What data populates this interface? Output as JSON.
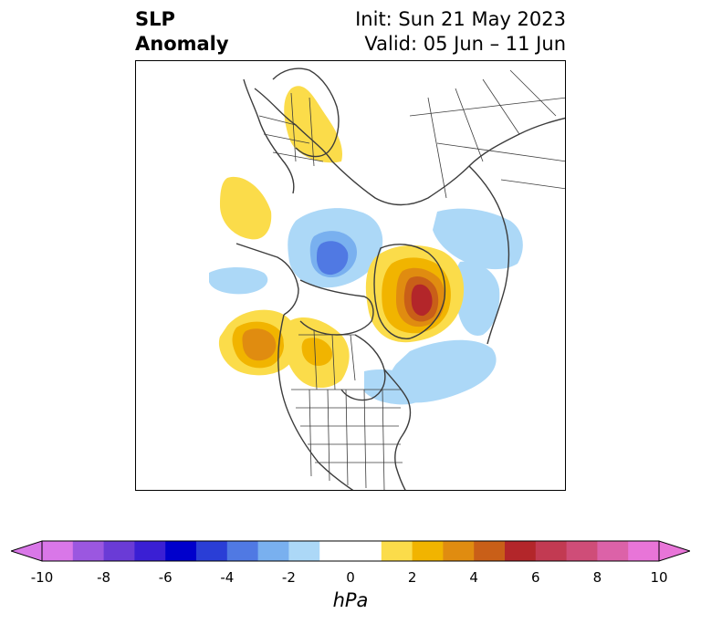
{
  "title": {
    "left_lines": [
      "SLP",
      "Anomaly"
    ],
    "right_lines": [
      "Init: Sun 21 May 2023",
      "Valid: 05 Jun – 11 Jun"
    ]
  },
  "map": {
    "projection": "north-polar-stereographic",
    "anomalies": [
      {
        "name": "scandinavia-positive",
        "sign": "positive",
        "peak_hpa": 1.5
      },
      {
        "name": "alaska-west-positive",
        "sign": "positive",
        "peak_hpa": 1.5
      },
      {
        "name": "canadian-arctic-negative",
        "sign": "negative",
        "peak_hpa": -3
      },
      {
        "name": "pacific-negative",
        "sign": "negative",
        "peak_hpa": -1.5
      },
      {
        "name": "siberia-negative",
        "sign": "negative",
        "peak_hpa": -1.5
      },
      {
        "name": "greenland-positive",
        "sign": "positive",
        "peak_hpa": 6.5
      },
      {
        "name": "gulf-of-alaska-positive",
        "sign": "positive",
        "peak_hpa": 3.5
      },
      {
        "name": "prairies-positive",
        "sign": "positive",
        "peak_hpa": 2.5
      },
      {
        "name": "north-atlantic-negative",
        "sign": "negative",
        "peak_hpa": -1.5
      },
      {
        "name": "barents-negative",
        "sign": "negative",
        "peak_hpa": -1.5
      }
    ]
  },
  "colorbar": {
    "unit": "hPa",
    "range": [
      -10,
      10
    ],
    "extend": "both",
    "ticks": [
      "-10",
      "-8",
      "-6",
      "-4",
      "-2",
      "0",
      "2",
      "4",
      "6",
      "8",
      "10"
    ],
    "colors": [
      "#d977e8",
      "#9b57e0",
      "#6a3bd6",
      "#3a1fd4",
      "#0000cc",
      "#2a3ed6",
      "#5079e3",
      "#79b0ef",
      "#acd8f7",
      "#ffffff",
      "#ffffff",
      "#fbdc4a",
      "#f1b400",
      "#e08c10",
      "#c95f18",
      "#b3262a",
      "#c23a52",
      "#cf4d78",
      "#dc62a8",
      "#e875d8"
    ],
    "end_colors": {
      "low": "#d977e8",
      "high": "#e875d8"
    }
  }
}
